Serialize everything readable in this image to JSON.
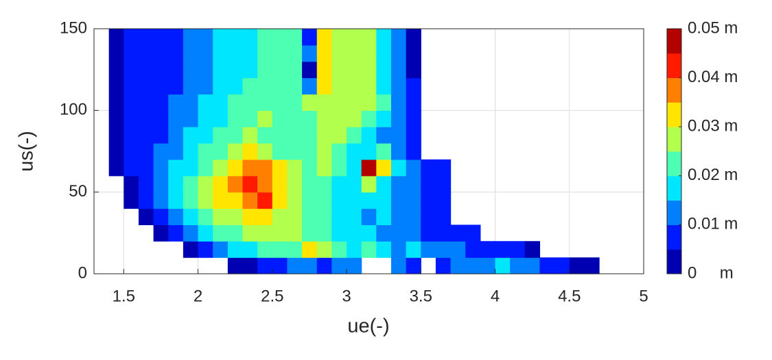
{
  "chart_data": {
    "type": "contourf",
    "colormap": "jet",
    "grid": true,
    "xlabel": "ue(-)",
    "ylabel": "us(-)",
    "xlim": [
      1.3,
      5
    ],
    "xticks": [
      1.5,
      2,
      2.5,
      3,
      3.5,
      4,
      4.5,
      5
    ],
    "ylim": [
      0,
      150
    ],
    "yticks": [
      0,
      50,
      100,
      150
    ],
    "clim": [
      0,
      0.05
    ],
    "cticks": [
      {
        "value": 0,
        "label": "0     m"
      },
      {
        "value": 0.01,
        "label": "0.01 m"
      },
      {
        "value": 0.02,
        "label": "0.02 m"
      },
      {
        "value": 0.03,
        "label": "0.03 m"
      },
      {
        "value": 0.04,
        "label": "0.04 m"
      },
      {
        "value": 0.05,
        "label": "0.05 m"
      }
    ],
    "levels": [
      0,
      0.005,
      0.01,
      0.015,
      0.02,
      0.025,
      0.03,
      0.035,
      0.04,
      0.045,
      0.05
    ],
    "x": [
      1.45,
      1.55,
      1.65,
      1.75,
      1.85,
      1.95,
      2.05,
      2.15,
      2.25,
      2.35,
      2.45,
      2.55,
      2.65,
      2.75,
      2.85,
      2.95,
      3.05,
      3.15,
      3.25,
      3.35,
      3.45,
      3.55,
      3.65,
      3.75,
      3.85,
      3.95,
      4.05,
      4.15,
      4.25,
      4.35,
      4.45,
      4.55,
      4.65
    ],
    "y": [
      5,
      15,
      25,
      35,
      45,
      55,
      65,
      75,
      85,
      95,
      105,
      115,
      125,
      135,
      145
    ],
    "z": [
      [
        null,
        null,
        null,
        null,
        null,
        null,
        null,
        null,
        0.0025,
        0.0025,
        0.0075,
        0.0075,
        0.0125,
        0.0125,
        0.0075,
        0.0125,
        0.0125,
        null,
        null,
        0.0125,
        0.0075,
        null,
        0.0075,
        0.0125,
        0.0125,
        0.0125,
        0.0175,
        0.0125,
        0.0125,
        0.0075,
        0.0075,
        0.0025,
        0.0025
      ],
      [
        null,
        null,
        null,
        null,
        null,
        0.0025,
        0.0075,
        0.0125,
        0.0175,
        0.0175,
        0.0225,
        0.0225,
        0.0225,
        0.0325,
        0.0275,
        0.0225,
        0.0175,
        0.0225,
        0.0175,
        0.0125,
        0.0175,
        0.0125,
        0.0125,
        0.0125,
        0.0075,
        0.0075,
        0.0075,
        0.0075,
        0.0025,
        null,
        null,
        null,
        null
      ],
      [
        null,
        null,
        null,
        0.0025,
        0.0075,
        0.0125,
        0.0175,
        0.0225,
        0.0225,
        0.0275,
        0.0275,
        0.0275,
        0.0275,
        0.0225,
        0.0225,
        0.0175,
        0.0175,
        0.0175,
        0.0125,
        0.0125,
        0.0125,
        0.0075,
        0.0075,
        0.0075,
        0.0075,
        null,
        null,
        null,
        null,
        null,
        null,
        null,
        null
      ],
      [
        null,
        null,
        0.0025,
        0.0075,
        0.0125,
        0.0175,
        0.0225,
        0.0275,
        0.0275,
        0.0325,
        0.0325,
        0.0275,
        0.0275,
        0.0225,
        0.0225,
        0.0175,
        0.0175,
        0.0125,
        0.0175,
        0.0125,
        0.0125,
        0.0075,
        0.0075,
        null,
        null,
        null,
        null,
        null,
        null,
        null,
        null,
        null,
        null
      ],
      [
        null,
        0.0025,
        0.0075,
        0.0125,
        0.0175,
        0.0225,
        0.0275,
        0.0325,
        0.0325,
        0.0375,
        0.0425,
        0.0325,
        0.0275,
        0.0225,
        0.0225,
        0.0175,
        0.0175,
        0.0175,
        0.0175,
        0.0125,
        0.0125,
        0.0075,
        0.0075,
        null,
        null,
        null,
        null,
        null,
        null,
        null,
        null,
        null,
        null
      ],
      [
        null,
        0.0025,
        0.0075,
        0.0125,
        0.0175,
        0.0225,
        0.0275,
        0.0325,
        0.0375,
        0.0425,
        0.0375,
        0.0325,
        0.0275,
        0.0225,
        0.0225,
        0.0175,
        0.0175,
        0.0275,
        0.0175,
        0.0125,
        0.0125,
        0.0075,
        0.0075,
        null,
        null,
        null,
        null,
        null,
        null,
        null,
        null,
        null,
        null
      ],
      [
        0.0025,
        0.0075,
        0.0075,
        0.0125,
        0.0175,
        0.0175,
        0.0225,
        0.0275,
        0.0325,
        0.0375,
        0.0375,
        0.0325,
        0.0275,
        0.0225,
        0.0275,
        0.0225,
        0.0175,
        0.0475,
        0.0325,
        0.0175,
        0.0125,
        0.0075,
        0.0075,
        null,
        null,
        null,
        null,
        null,
        null,
        null,
        null,
        null,
        null
      ],
      [
        0.0025,
        0.0075,
        0.0075,
        0.0125,
        0.0125,
        0.0175,
        0.0225,
        0.0225,
        0.0275,
        0.0325,
        0.0275,
        0.0225,
        0.0225,
        0.0225,
        0.0275,
        0.0225,
        0.0175,
        0.0175,
        0.0225,
        0.0125,
        0.0075,
        null,
        null,
        null,
        null,
        null,
        null,
        null,
        null,
        null,
        null,
        null,
        null
      ],
      [
        0.0025,
        0.0075,
        0.0075,
        0.0075,
        0.0125,
        0.0175,
        0.0175,
        0.0225,
        0.0225,
        0.0275,
        0.0225,
        0.0225,
        0.0225,
        0.0225,
        0.0275,
        0.0275,
        0.0225,
        0.0175,
        0.0125,
        0.0125,
        0.0075,
        null,
        null,
        null,
        null,
        null,
        null,
        null,
        null,
        null,
        null,
        null,
        null
      ],
      [
        0.0025,
        0.0075,
        0.0075,
        0.0075,
        0.0125,
        0.0125,
        0.0175,
        0.0175,
        0.0225,
        0.0225,
        0.0275,
        0.0225,
        0.0225,
        0.0225,
        0.0275,
        0.0275,
        0.0275,
        0.0225,
        0.0175,
        0.0125,
        0.0075,
        null,
        null,
        null,
        null,
        null,
        null,
        null,
        null,
        null,
        null,
        null,
        null
      ],
      [
        0.0025,
        0.0075,
        0.0075,
        0.0075,
        0.0125,
        0.0125,
        0.0175,
        0.0175,
        0.0225,
        0.0225,
        0.0225,
        0.0225,
        0.0225,
        0.0275,
        0.0275,
        0.0275,
        0.0275,
        0.0275,
        0.0225,
        0.0125,
        0.0075,
        null,
        null,
        null,
        null,
        null,
        null,
        null,
        null,
        null,
        null,
        null,
        null
      ],
      [
        0.0025,
        0.0075,
        0.0075,
        0.0075,
        0.0075,
        0.0125,
        0.0125,
        0.0175,
        0.0175,
        0.0225,
        0.0225,
        0.0225,
        0.0225,
        0.0125,
        0.0325,
        0.0275,
        0.0275,
        0.0275,
        0.0175,
        0.0125,
        0.0075,
        null,
        null,
        null,
        null,
        null,
        null,
        null,
        null,
        null,
        null,
        null,
        null
      ],
      [
        0.0025,
        0.0075,
        0.0075,
        0.0075,
        0.0075,
        0.0125,
        0.0125,
        0.0175,
        0.0175,
        0.0175,
        0.0225,
        0.0225,
        0.0225,
        0.0025,
        0.0325,
        0.0275,
        0.0275,
        0.0275,
        0.0175,
        0.0125,
        0.0025,
        null,
        null,
        null,
        null,
        null,
        null,
        null,
        null,
        null,
        null,
        null,
        null
      ],
      [
        0.0025,
        0.0075,
        0.0075,
        0.0075,
        0.0075,
        0.0125,
        0.0125,
        0.0175,
        0.0175,
        0.0175,
        0.0225,
        0.0225,
        0.0225,
        0.0125,
        0.0325,
        0.0275,
        0.0275,
        0.0275,
        0.0175,
        0.0125,
        0.0025,
        null,
        null,
        null,
        null,
        null,
        null,
        null,
        null,
        null,
        null,
        null,
        null
      ],
      [
        0.0025,
        0.0075,
        0.0075,
        0.0075,
        0.0075,
        0.0125,
        0.0125,
        0.0175,
        0.0175,
        0.0175,
        0.0225,
        0.0225,
        0.0225,
        0.0075,
        0.0325,
        0.0275,
        0.0275,
        0.0275,
        0.0175,
        0.0125,
        0.0025,
        null,
        null,
        null,
        null,
        null,
        null,
        null,
        null,
        null,
        null,
        null,
        null
      ]
    ]
  }
}
